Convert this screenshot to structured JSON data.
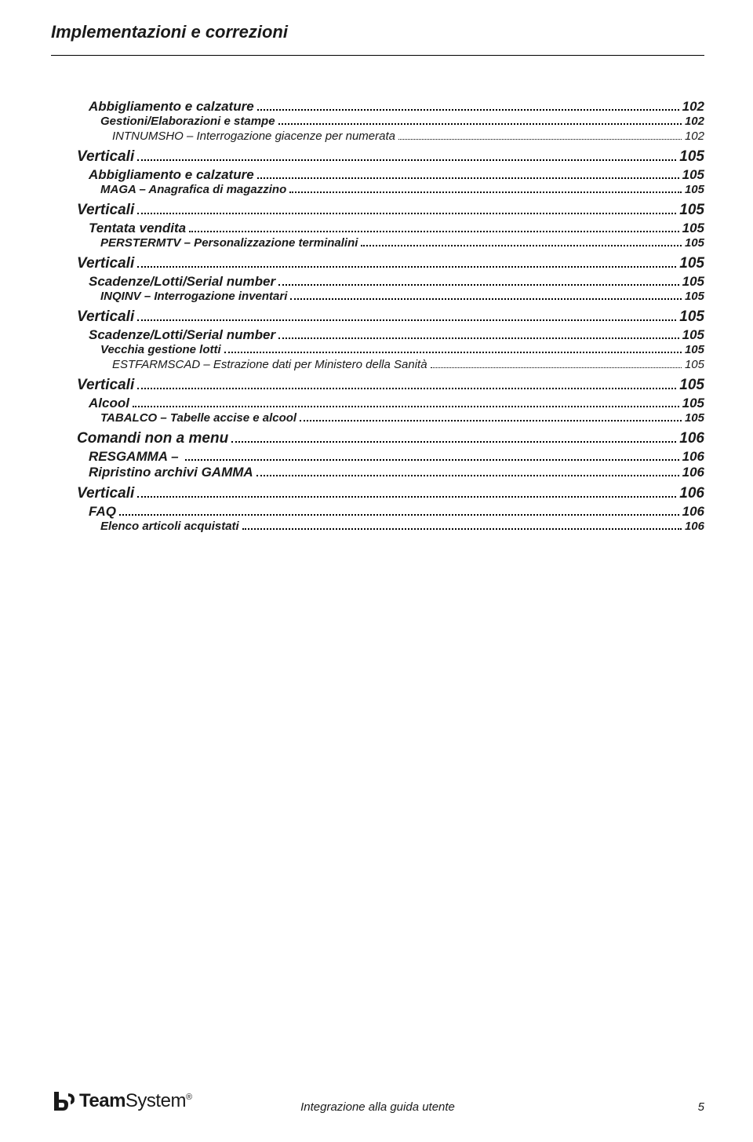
{
  "header": {
    "title": "Implementazioni e correzioni"
  },
  "toc": [
    {
      "level": 2,
      "label": "Abbigliamento e calzature",
      "page": "102"
    },
    {
      "level": 3,
      "label": "Gestioni/Elaborazioni e stampe",
      "page": " 102"
    },
    {
      "level": 4,
      "label": "INTNUMSHO – Interrogazione giacenze per numerata",
      "page": " 102"
    },
    {
      "level": 1,
      "label": "Verticali",
      "page": " 105"
    },
    {
      "level": 2,
      "label": "Abbigliamento e calzature",
      "page": "105"
    },
    {
      "level": 3,
      "label": "MAGA – Anagrafica di magazzino",
      "page": " 105"
    },
    {
      "level": 1,
      "label": "Verticali",
      "page": " 105"
    },
    {
      "level": 2,
      "label": "Tentata vendita",
      "page": "105"
    },
    {
      "level": 3,
      "label": "PERSTERMTV – Personalizzazione terminalini",
      "page": " 105"
    },
    {
      "level": 1,
      "label": "Verticali",
      "page": " 105"
    },
    {
      "level": 2,
      "label": "Scadenze/Lotti/Serial number",
      "page": "105"
    },
    {
      "level": 3,
      "label": "INQINV – Interrogazione inventari",
      "page": " 105"
    },
    {
      "level": 1,
      "label": "Verticali",
      "page": " 105"
    },
    {
      "level": 2,
      "label": "Scadenze/Lotti/Serial number",
      "page": "105"
    },
    {
      "level": 3,
      "label": "Vecchia gestione lotti",
      "page": " 105"
    },
    {
      "level": 4,
      "label": "ESTFARMSCAD – Estrazione dati per Ministero della Sanità",
      "page": " 105"
    },
    {
      "level": 1,
      "label": "Verticali",
      "page": " 105"
    },
    {
      "level": 2,
      "label": "Alcool",
      "page": "105"
    },
    {
      "level": 3,
      "label": "TABALCO – Tabelle accise e alcool",
      "page": " 105"
    },
    {
      "level": 1,
      "label": "Comandi non a menu",
      "page": " 106"
    },
    {
      "level": 2,
      "label": "RESGAMMA – ",
      "page": "106"
    },
    {
      "level": 2,
      "label": "Ripristino archivi GAMMA",
      "page": "106"
    },
    {
      "level": 1,
      "label": "Verticali",
      "page": " 106"
    },
    {
      "level": 2,
      "label": "FAQ",
      "page": "106"
    },
    {
      "level": 3,
      "label": "Elenco articoli acquistati",
      "page": " 106"
    }
  ],
  "footer": {
    "logo_bold": "Team",
    "logo_rest": "System",
    "center": "Integrazione alla guida utente",
    "page_number": "5"
  },
  "colors": {
    "text": "#1a1a1a",
    "background": "#ffffff"
  }
}
